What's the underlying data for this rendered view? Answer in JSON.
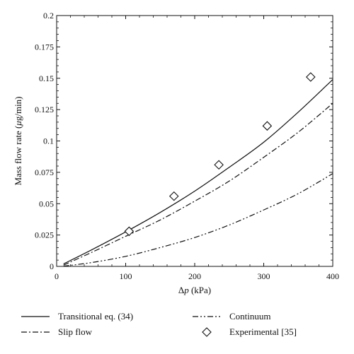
{
  "chart_data": {
    "type": "line",
    "title": "",
    "xlabel_prefix": "Δ",
    "xlabel_symbol": "p",
    "xlabel_unit": " (kPa)",
    "ylabel_prefix": "Mass flow rate (",
    "ylabel_symbol": "μ",
    "ylabel_suffix": "g/min)",
    "xlim": [
      0,
      400
    ],
    "ylim": [
      0,
      0.2
    ],
    "xticks": [
      0,
      100,
      200,
      300,
      400
    ],
    "xtick_labels": [
      "0",
      "100",
      "200",
      "300",
      "400"
    ],
    "yticks": [
      0,
      0.025,
      0.05,
      0.075,
      0.1,
      0.125,
      0.15,
      0.175,
      0.2
    ],
    "ytick_labels": [
      "0",
      "0.025",
      "0.05",
      "0.075",
      "0.1",
      "0.125",
      "0.15",
      "0.175",
      "0.2"
    ],
    "grid": false,
    "legend_position": "bottom",
    "series": [
      {
        "name": "Transitional eq. (34)",
        "style": "solid",
        "color": "#111111",
        "x": [
          10,
          50,
          100,
          150,
          200,
          250,
          300,
          350,
          400
        ],
        "y": [
          0.002,
          0.013,
          0.0275,
          0.043,
          0.06,
          0.079,
          0.099,
          0.123,
          0.149
        ]
      },
      {
        "name": "Slip flow",
        "style": "dashdot",
        "color": "#111111",
        "x": [
          10,
          50,
          100,
          150,
          200,
          250,
          300,
          350,
          400
        ],
        "y": [
          0.001,
          0.011,
          0.024,
          0.037,
          0.052,
          0.068,
          0.087,
          0.107,
          0.13
        ]
      },
      {
        "name": "Continuum",
        "style": "dashdotdot",
        "color": "#111111",
        "x": [
          10,
          50,
          100,
          150,
          200,
          250,
          300,
          350,
          400
        ],
        "y": [
          0.0002,
          0.003,
          0.008,
          0.015,
          0.023,
          0.033,
          0.045,
          0.058,
          0.074
        ]
      },
      {
        "name": "Experimental [35]",
        "style": "marker",
        "marker": "diamond",
        "color": "#111111",
        "x": [
          105,
          170,
          235,
          305,
          368
        ],
        "y": [
          0.028,
          0.056,
          0.081,
          0.112,
          0.151
        ]
      }
    ],
    "legend_layout": [
      [
        0,
        2
      ],
      [
        1,
        3
      ]
    ]
  }
}
